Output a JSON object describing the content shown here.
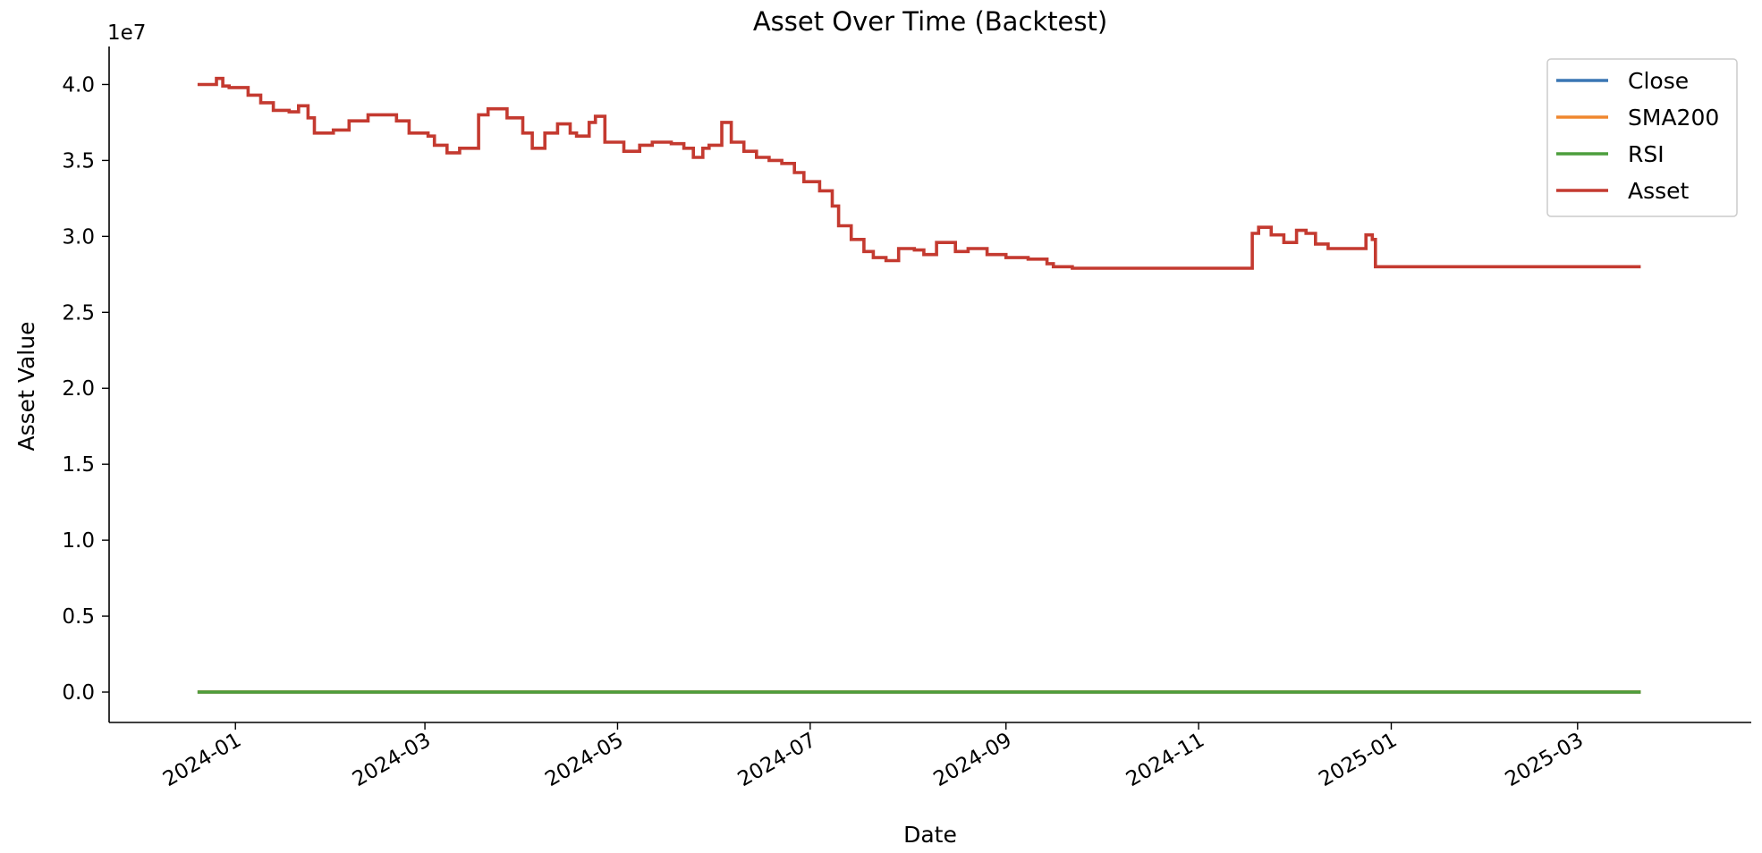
{
  "chart_data": {
    "type": "line",
    "title": "Asset Over Time (Backtest)",
    "xlabel": "Date",
    "ylabel": "Asset Value",
    "y_offset_label": "1e7",
    "y_scale_factor": 10000000,
    "ylim": [
      -0.2,
      4.25
    ],
    "xlim": [
      "2023-11-22",
      "2025-04-25"
    ],
    "grid": false,
    "legend_position": "top-right",
    "x_ticks": [
      "2024-01",
      "2024-03",
      "2024-05",
      "2024-07",
      "2024-09",
      "2024-11",
      "2025-01",
      "2025-03"
    ],
    "y_ticks": [
      "0.0",
      "0.5",
      "1.0",
      "1.5",
      "2.0",
      "2.5",
      "3.0",
      "3.5",
      "4.0"
    ],
    "series": [
      {
        "name": "Close",
        "color": "#3a76b4",
        "x": [
          "2023-12-20",
          "2025-03-21"
        ],
        "y": [
          0.0005,
          0.0005
        ]
      },
      {
        "name": "SMA200",
        "color": "#f0872e",
        "x": [
          "2023-12-20",
          "2025-03-21"
        ],
        "y": [
          0.0005,
          0.0005
        ]
      },
      {
        "name": "RSI",
        "color": "#4c9e3c",
        "x": [
          "2023-12-20",
          "2025-03-21"
        ],
        "y": [
          0.0,
          0.0
        ]
      },
      {
        "name": "Asset",
        "color": "#c43a30",
        "x": [
          "2023-12-20",
          "2023-12-24",
          "2023-12-26",
          "2023-12-28",
          "2023-12-30",
          "2024-01-02",
          "2024-01-05",
          "2024-01-09",
          "2024-01-13",
          "2024-01-18",
          "2024-01-21",
          "2024-01-24",
          "2024-01-26",
          "2024-02-01",
          "2024-02-06",
          "2024-02-12",
          "2024-02-18",
          "2024-02-21",
          "2024-02-25",
          "2024-03-02",
          "2024-03-04",
          "2024-03-08",
          "2024-03-12",
          "2024-03-18",
          "2024-03-21",
          "2024-03-27",
          "2024-04-01",
          "2024-04-04",
          "2024-04-08",
          "2024-04-12",
          "2024-04-16",
          "2024-04-18",
          "2024-04-22",
          "2024-04-24",
          "2024-04-27",
          "2024-05-03",
          "2024-05-05",
          "2024-05-08",
          "2024-05-12",
          "2024-05-18",
          "2024-05-22",
          "2024-05-25",
          "2024-05-28",
          "2024-05-30",
          "2024-06-03",
          "2024-06-06",
          "2024-06-10",
          "2024-06-14",
          "2024-06-18",
          "2024-06-22",
          "2024-06-26",
          "2024-06-29",
          "2024-07-04",
          "2024-07-08",
          "2024-07-10",
          "2024-07-14",
          "2024-07-18",
          "2024-07-21",
          "2024-07-25",
          "2024-07-29",
          "2024-08-03",
          "2024-08-06",
          "2024-08-10",
          "2024-08-16",
          "2024-08-20",
          "2024-08-26",
          "2024-09-01",
          "2024-09-08",
          "2024-09-14",
          "2024-09-16",
          "2024-09-22",
          "2024-10-01",
          "2024-10-15",
          "2024-11-01",
          "2024-11-15",
          "2024-11-17",
          "2024-11-18",
          "2024-11-20",
          "2024-11-24",
          "2024-11-28",
          "2024-12-02",
          "2024-12-05",
          "2024-12-08",
          "2024-12-12",
          "2024-12-18",
          "2024-12-24",
          "2024-12-26",
          "2024-12-27",
          "2025-01-15",
          "2025-02-15",
          "2025-03-21"
        ],
        "y": [
          4.0,
          4.0,
          4.04,
          3.99,
          3.98,
          3.98,
          3.93,
          3.88,
          3.83,
          3.82,
          3.86,
          3.78,
          3.68,
          3.7,
          3.76,
          3.8,
          3.8,
          3.76,
          3.68,
          3.66,
          3.6,
          3.55,
          3.58,
          3.8,
          3.84,
          3.78,
          3.68,
          3.58,
          3.68,
          3.74,
          3.68,
          3.66,
          3.75,
          3.79,
          3.62,
          3.56,
          3.56,
          3.6,
          3.62,
          3.61,
          3.58,
          3.52,
          3.58,
          3.6,
          3.75,
          3.62,
          3.56,
          3.52,
          3.5,
          3.48,
          3.42,
          3.36,
          3.3,
          3.2,
          3.07,
          2.98,
          2.9,
          2.86,
          2.84,
          2.92,
          2.91,
          2.88,
          2.96,
          2.9,
          2.92,
          2.88,
          2.86,
          2.85,
          2.82,
          2.8,
          2.79,
          2.79,
          2.79,
          2.79,
          2.79,
          2.79,
          3.02,
          3.06,
          3.01,
          2.96,
          3.04,
          3.02,
          2.95,
          2.92,
          2.92,
          3.01,
          2.98,
          2.8,
          2.8,
          2.8,
          2.8
        ]
      }
    ]
  }
}
